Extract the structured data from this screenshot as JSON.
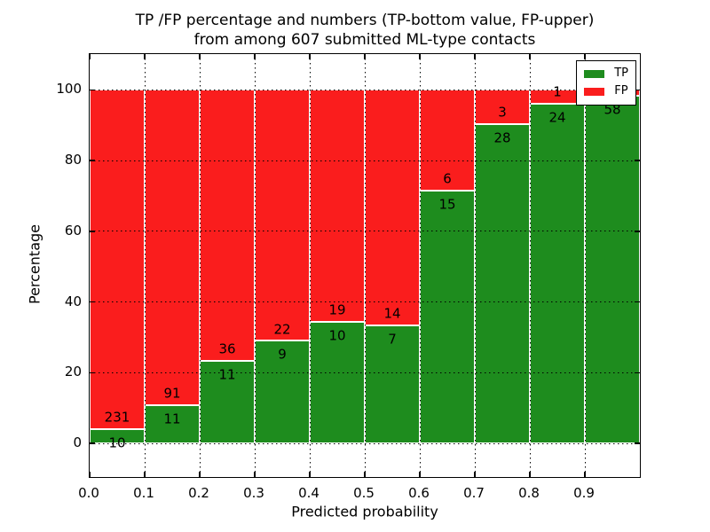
{
  "title": {
    "line1": "TP /FP percentage and numbers (TP-bottom value, FP-upper)",
    "line2": "from among 607 submitted ML-type contacts"
  },
  "axes": {
    "xlabel": "Predicted probability",
    "ylabel": "Percentage",
    "x_tick_values": [
      0.0,
      0.1,
      0.2,
      0.3,
      0.4,
      0.5,
      0.6,
      0.7,
      0.8,
      0.9
    ],
    "x_tick_labels": [
      "0.0",
      "0.1",
      "0.2",
      "0.3",
      "0.4",
      "0.5",
      "0.6",
      "0.7",
      "0.8",
      "0.9"
    ],
    "y_tick_values": [
      0,
      20,
      40,
      60,
      80,
      100
    ],
    "y_tick_labels": [
      "0",
      "20",
      "40",
      "60",
      "80",
      "100"
    ],
    "xlim": [
      0.0,
      1.0
    ],
    "ylim": [
      -9.5,
      110.1
    ],
    "grid_style": "dotted"
  },
  "legend": {
    "position": "upper right",
    "items": [
      {
        "label": "TP",
        "color": "#1e8c1e"
      },
      {
        "label": "FP",
        "color": "#fa1d1d"
      }
    ]
  },
  "colors": {
    "tp": "#1e8c1e",
    "fp": "#fa1d1d",
    "bar_edge": "#ffffff",
    "grid": "#000000",
    "text": "#000000",
    "background": "#ffffff"
  },
  "chart_data": {
    "type": "bar",
    "mode": "stacked-normalized-percent",
    "title": "TP /FP percentage and numbers (TP-bottom value, FP-upper) from among 607 submitted ML-type contacts",
    "xlabel": "Predicted probability",
    "ylabel": "Percentage",
    "total_submitted": 607,
    "bin_starts": [
      0.0,
      0.1,
      0.2,
      0.3,
      0.4,
      0.5,
      0.6,
      0.7,
      0.8,
      0.9
    ],
    "bin_width": 0.1,
    "series": [
      {
        "name": "TP",
        "color": "#1e8c1e",
        "counts": [
          10,
          11,
          11,
          9,
          10,
          7,
          15,
          28,
          24,
          58
        ]
      },
      {
        "name": "FP",
        "color": "#fa1d1d",
        "counts": [
          231,
          91,
          36,
          22,
          19,
          14,
          6,
          3,
          1,
          1
        ]
      }
    ],
    "tp_percent_of_bin": [
      4.1,
      10.8,
      23.4,
      29.0,
      34.5,
      33.3,
      71.4,
      90.3,
      96.0,
      98.3
    ],
    "xlim": [
      0.0,
      1.0
    ],
    "ylim": [
      -9.5,
      110.1
    ],
    "y_ticks": [
      0,
      20,
      40,
      60,
      80,
      100
    ],
    "x_ticks": [
      0.0,
      0.1,
      0.2,
      0.3,
      0.4,
      0.5,
      0.6,
      0.7,
      0.8,
      0.9
    ],
    "grid": true,
    "legend_position": "upper right"
  }
}
